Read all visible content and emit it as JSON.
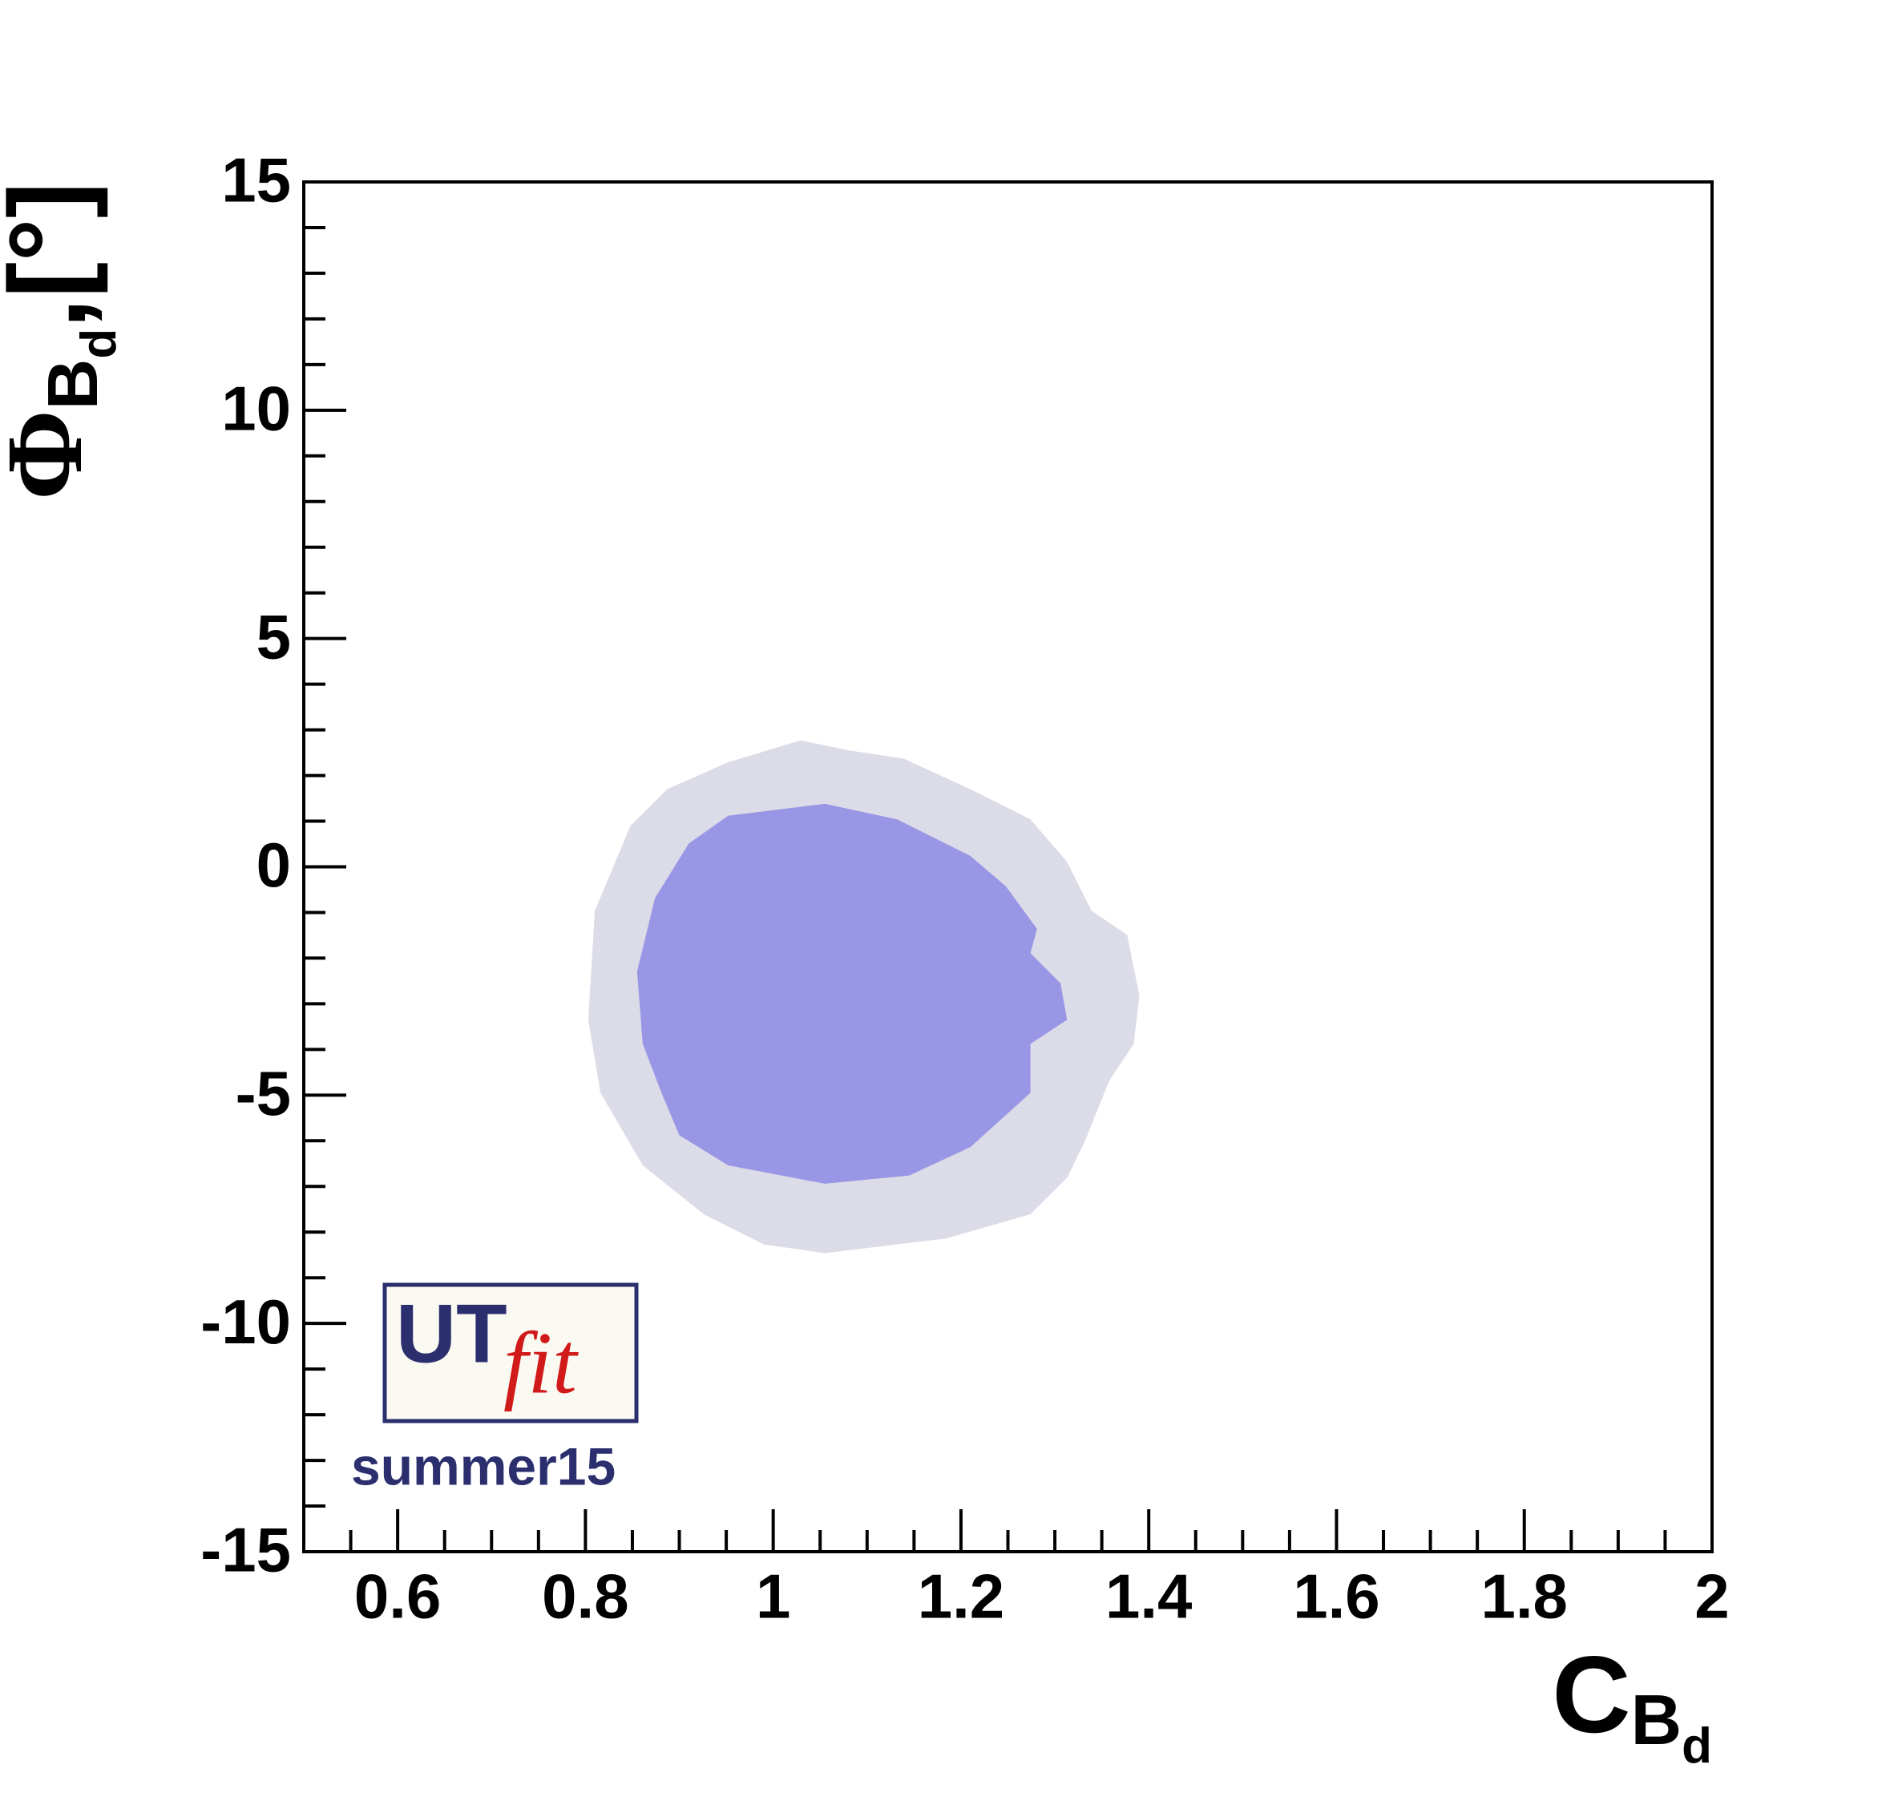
{
  "chart_data": {
    "type": "contour",
    "x_label": [
      "C",
      "B",
      "d"
    ],
    "y_label": [
      "Φ",
      "B",
      "d",
      ",[°]"
    ],
    "xlim": [
      0.5,
      2
    ],
    "ylim": [
      -15,
      15
    ],
    "xticks": [
      0.6,
      0.8,
      1,
      1.2,
      1.4,
      1.6,
      1.8,
      2
    ],
    "yticks": [
      -15,
      -10,
      -5,
      0,
      5,
      10,
      15
    ],
    "xminorticks": [
      0.55,
      0.65,
      0.7,
      0.75,
      0.85,
      0.9,
      0.95,
      1.05,
      1.1,
      1.15,
      1.25,
      1.3,
      1.35,
      1.45,
      1.5,
      1.55,
      1.65,
      1.7,
      1.75,
      1.85,
      1.9,
      1.95
    ],
    "yminorticks": [
      -14,
      -13,
      -12,
      -11,
      -9,
      -8,
      -7,
      -6,
      -4,
      -3,
      -2,
      -1,
      1,
      2,
      3,
      4,
      6,
      7,
      8,
      9,
      11,
      12,
      13,
      14
    ],
    "series": [
      {
        "color": "#dcdce8",
        "x": [
          0.952,
          1.029,
          1.081,
          1.139,
          1.21,
          1.274,
          1.313,
          1.339,
          1.377,
          1.39,
          1.384,
          1.358,
          1.332,
          1.313,
          1.274,
          1.184,
          1.055,
          0.99,
          0.926,
          0.861,
          0.816,
          0.803,
          0.81,
          0.848,
          0.887
        ],
        "y": [
          2.29,
          2.77,
          2.55,
          2.37,
          1.7,
          1.04,
          0.11,
          -0.96,
          -1.49,
          -2.82,
          -3.88,
          -4.68,
          -6.01,
          -6.81,
          -7.61,
          -8.14,
          -8.46,
          -8.27,
          -7.61,
          -6.54,
          -4.95,
          -3.35,
          -0.96,
          0.9,
          1.7
        ]
      },
      {
        "color": "#9a96e6",
        "x": [
          0.952,
          1.055,
          1.132,
          1.21,
          1.248,
          1.281,
          1.274,
          1.306,
          1.313,
          1.274,
          1.274,
          1.21,
          1.145,
          1.055,
          0.952,
          0.9,
          0.881,
          0.861,
          0.855,
          0.874,
          0.91
        ],
        "y": [
          1.12,
          1.38,
          1.04,
          0.24,
          -0.43,
          -1.36,
          -1.89,
          -2.55,
          -3.35,
          -3.88,
          -4.95,
          -6.14,
          -6.76,
          -6.94,
          -6.54,
          -5.88,
          -4.95,
          -3.88,
          -2.29,
          -0.69,
          0.51
        ]
      }
    ],
    "logo": {
      "main": "UT",
      "script": "fit",
      "caption": "summer15"
    }
  }
}
